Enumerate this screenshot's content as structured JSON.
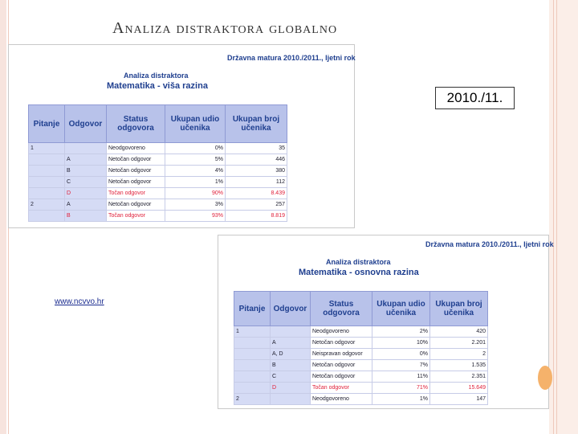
{
  "slide": {
    "title": "Analiza distraktora globalno",
    "year_box": "2010./11.",
    "link": "www.ncvvo.hr"
  },
  "top_table": {
    "exam": "Državna matura 2010./2011., ljetni rok",
    "subtitle": "Analiza distraktora",
    "title": "Matematika - viša razina",
    "headers": [
      "Pitanje",
      "Odgovor",
      "Status odgovora",
      "Ukupan udio učenika",
      "Ukupan broj učenika"
    ],
    "rows": [
      {
        "q": "1",
        "a": "",
        "status": "Neodgovoreno",
        "pct": "0%",
        "n": "35",
        "correct": false
      },
      {
        "q": "",
        "a": "A",
        "status": "Netočan odgovor",
        "pct": "5%",
        "n": "446",
        "correct": false
      },
      {
        "q": "",
        "a": "B",
        "status": "Netočan odgovor",
        "pct": "4%",
        "n": "380",
        "correct": false
      },
      {
        "q": "",
        "a": "C",
        "status": "Netočan odgovor",
        "pct": "1%",
        "n": "112",
        "correct": false
      },
      {
        "q": "",
        "a": "D",
        "status": "Točan odgovor",
        "pct": "90%",
        "n": "8.439",
        "correct": true
      },
      {
        "q": "2",
        "a": "A",
        "status": "Netočan odgovor",
        "pct": "3%",
        "n": "257",
        "correct": false
      },
      {
        "q": "",
        "a": "B",
        "status": "Točan odgovor",
        "pct": "93%",
        "n": "8.819",
        "correct": true
      }
    ]
  },
  "bottom_table": {
    "exam": "Državna matura 2010./2011., ljetni rok",
    "subtitle": "Analiza distraktora",
    "title": "Matematika - osnovna razina",
    "headers": [
      "Pitanje",
      "Odgovor",
      "Status odgovora",
      "Ukupan udio učenika",
      "Ukupan broj učenika"
    ],
    "rows": [
      {
        "q": "1",
        "a": "",
        "status": "Neodgovoreno",
        "pct": "2%",
        "n": "420",
        "correct": false
      },
      {
        "q": "",
        "a": "A",
        "status": "Netočan odgovor",
        "pct": "10%",
        "n": "2.201",
        "correct": false
      },
      {
        "q": "",
        "a": "A, D",
        "status": "Neispravan odgovor",
        "pct": "0%",
        "n": "2",
        "correct": false
      },
      {
        "q": "",
        "a": "B",
        "status": "Netočan odgovor",
        "pct": "7%",
        "n": "1.535",
        "correct": false
      },
      {
        "q": "",
        "a": "C",
        "status": "Netočan odgovor",
        "pct": "11%",
        "n": "2.351",
        "correct": false
      },
      {
        "q": "",
        "a": "D",
        "status": "Točan odgovor",
        "pct": "71%",
        "n": "15.649",
        "correct": true
      },
      {
        "q": "2",
        "a": "",
        "status": "Neodgovoreno",
        "pct": "1%",
        "n": "147",
        "correct": false
      }
    ]
  }
}
